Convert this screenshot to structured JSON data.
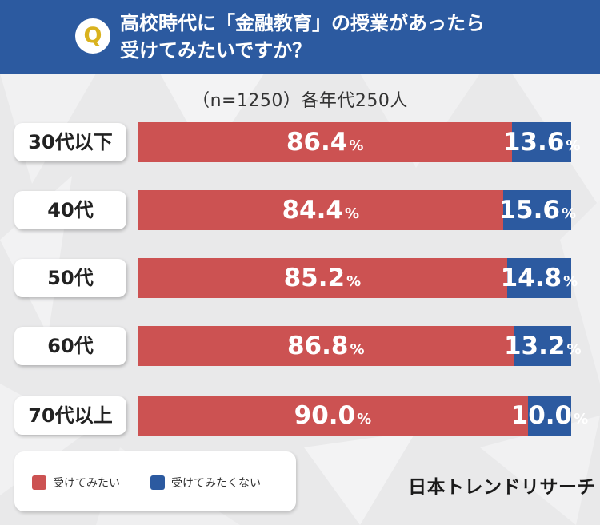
{
  "colors": {
    "want": "#cc5252",
    "not_want": "#2c5aa0",
    "header": "#2c5aa0",
    "badge_letter": "#d9b21e"
  },
  "header": {
    "badge": "Q",
    "line1": "高校時代に「金融教育」の授業があったら",
    "line2": "受けてみたいですか？"
  },
  "brand": "日本トレンドリサーチ",
  "chart_data": {
    "type": "bar",
    "orientation": "horizontal-stacked-100",
    "title": "高校時代に「金融教育」の授業があったら受けてみたいですか？",
    "subtitle": "（n=1250）各年代250人",
    "unit": "%",
    "categories": [
      "30代以下",
      "40代",
      "50代",
      "60代",
      "70代以上"
    ],
    "series": [
      {
        "name": "受けてみたい",
        "values": [
          86.4,
          84.4,
          85.2,
          86.8,
          90.0
        ]
      },
      {
        "name": "受けてみたくない",
        "values": [
          13.6,
          15.6,
          14.8,
          13.2,
          10.0
        ]
      }
    ],
    "xlim": [
      0,
      100
    ],
    "legend": "bottom-left"
  }
}
